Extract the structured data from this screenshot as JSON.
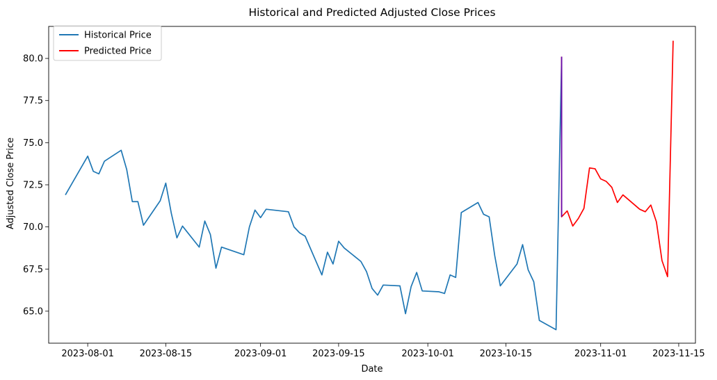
{
  "chart_data": {
    "type": "line",
    "title": "Historical and Predicted Adjusted Close Prices",
    "xlabel": "Date",
    "ylabel": "Adjusted Close Price",
    "xlim": [
      "2023-07-25",
      "2023-11-18"
    ],
    "ylim": [
      63.1,
      81.9
    ],
    "x_ticks": [
      {
        "date": "2023-08-01",
        "label": "2023-08-01"
      },
      {
        "date": "2023-08-15",
        "label": "2023-08-15"
      },
      {
        "date": "2023-09-01",
        "label": "2023-09-01"
      },
      {
        "date": "2023-09-15",
        "label": "2023-09-15"
      },
      {
        "date": "2023-10-01",
        "label": "2023-10-01"
      },
      {
        "date": "2023-10-15",
        "label": "2023-10-15"
      },
      {
        "date": "2023-11-01",
        "label": "2023-11-01"
      },
      {
        "date": "2023-11-15",
        "label": "2023-11-15"
      }
    ],
    "y_ticks": [
      {
        "value": 65.0,
        "label": "65.0"
      },
      {
        "value": 67.5,
        "label": "67.5"
      },
      {
        "value": 70.0,
        "label": "70.0"
      },
      {
        "value": 72.5,
        "label": "72.5"
      },
      {
        "value": 75.0,
        "label": "75.0"
      },
      {
        "value": 77.5,
        "label": "77.5"
      },
      {
        "value": 80.0,
        "label": "80.0"
      }
    ],
    "grid": false,
    "legend_position": "top-left",
    "series": [
      {
        "name": "Historical Price",
        "color": "#1f77b4",
        "points": [
          [
            "2023-07-28",
            71.9
          ],
          [
            "2023-08-01",
            74.2
          ],
          [
            "2023-08-02",
            73.3
          ],
          [
            "2023-08-03",
            73.15
          ],
          [
            "2023-08-04",
            73.9
          ],
          [
            "2023-08-07",
            74.55
          ],
          [
            "2023-08-08",
            73.4
          ],
          [
            "2023-08-09",
            71.5
          ],
          [
            "2023-08-10",
            71.5
          ],
          [
            "2023-08-11",
            70.1
          ],
          [
            "2023-08-14",
            71.55
          ],
          [
            "2023-08-15",
            72.6
          ],
          [
            "2023-08-16",
            70.8
          ],
          [
            "2023-08-17",
            69.35
          ],
          [
            "2023-08-18",
            70.05
          ],
          [
            "2023-08-21",
            68.8
          ],
          [
            "2023-08-22",
            70.35
          ],
          [
            "2023-08-23",
            69.55
          ],
          [
            "2023-08-24",
            67.55
          ],
          [
            "2023-08-25",
            68.8
          ],
          [
            "2023-08-29",
            68.35
          ],
          [
            "2023-08-30",
            70.0
          ],
          [
            "2023-08-31",
            71.0
          ],
          [
            "2023-09-01",
            70.55
          ],
          [
            "2023-09-02",
            71.05
          ],
          [
            "2023-09-06",
            70.9
          ],
          [
            "2023-09-07",
            70.0
          ],
          [
            "2023-09-08",
            69.65
          ],
          [
            "2023-09-09",
            69.45
          ],
          [
            "2023-09-12",
            67.15
          ],
          [
            "2023-09-13",
            68.5
          ],
          [
            "2023-09-14",
            67.8
          ],
          [
            "2023-09-15",
            69.15
          ],
          [
            "2023-09-16",
            68.75
          ],
          [
            "2023-09-19",
            67.95
          ],
          [
            "2023-09-20",
            67.35
          ],
          [
            "2023-09-21",
            66.35
          ],
          [
            "2023-09-22",
            65.95
          ],
          [
            "2023-09-23",
            66.55
          ],
          [
            "2023-09-26",
            66.5
          ],
          [
            "2023-09-27",
            64.85
          ],
          [
            "2023-09-28",
            66.45
          ],
          [
            "2023-09-29",
            67.3
          ],
          [
            "2023-09-30",
            66.2
          ],
          [
            "2023-10-03",
            66.15
          ],
          [
            "2023-10-04",
            66.05
          ],
          [
            "2023-10-05",
            67.15
          ],
          [
            "2023-10-06",
            67.0
          ],
          [
            "2023-10-07",
            70.85
          ],
          [
            "2023-10-10",
            71.45
          ],
          [
            "2023-10-11",
            70.75
          ],
          [
            "2023-10-12",
            70.6
          ],
          [
            "2023-10-13",
            68.3
          ],
          [
            "2023-10-14",
            66.5
          ],
          [
            "2023-10-17",
            67.8
          ],
          [
            "2023-10-18",
            68.95
          ],
          [
            "2023-10-19",
            67.45
          ],
          [
            "2023-10-20",
            66.75
          ],
          [
            "2023-10-21",
            64.45
          ],
          [
            "2023-10-24",
            63.9
          ],
          [
            "2023-10-25",
            80.1
          ]
        ]
      },
      {
        "name": "Predicted Price",
        "color": "#ff0000",
        "points": [
          [
            "2023-10-25",
            80.1
          ],
          [
            "2023-10-25",
            70.6
          ],
          [
            "2023-10-26",
            70.95
          ],
          [
            "2023-10-27",
            70.05
          ],
          [
            "2023-10-28",
            70.5
          ],
          [
            "2023-10-29",
            71.1
          ],
          [
            "2023-10-30",
            73.5
          ],
          [
            "2023-10-31",
            73.45
          ],
          [
            "2023-11-01",
            72.85
          ],
          [
            "2023-11-02",
            72.7
          ],
          [
            "2023-11-03",
            72.35
          ],
          [
            "2023-11-04",
            71.45
          ],
          [
            "2023-11-05",
            71.9
          ],
          [
            "2023-11-08",
            71.05
          ],
          [
            "2023-11-09",
            70.9
          ],
          [
            "2023-11-10",
            71.3
          ],
          [
            "2023-11-11",
            70.3
          ],
          [
            "2023-11-12",
            68.0
          ],
          [
            "2023-11-13",
            67.05
          ],
          [
            "2023-11-14",
            81.05
          ]
        ]
      }
    ],
    "connector": {
      "color": "#6a0dad",
      "points": [
        [
          "2023-10-25",
          70.6
        ],
        [
          "2023-10-25",
          80.1
        ]
      ]
    }
  }
}
